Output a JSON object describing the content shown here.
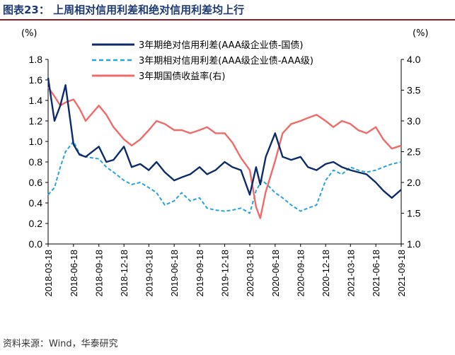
{
  "header": {
    "title": "图表23：  上周相对信用利差和绝对信用利差均上行"
  },
  "footer": {
    "source": "资料来源：Wind，华泰研究"
  },
  "colors": {
    "abs": "#0d2b6b",
    "rel": "#29a3dc",
    "yield": "#f06a6a",
    "title": "#1f3b73",
    "rule": "#8a1f24"
  },
  "chart_data": {
    "type": "line",
    "left_unit": "(%)",
    "right_unit": "(%)",
    "left_axis": {
      "ylim": [
        0.0,
        1.8
      ],
      "ticks": [
        "0.0",
        "0.2",
        "0.4",
        "0.6",
        "0.8",
        "1.0",
        "1.2",
        "1.4",
        "1.6",
        "1.8"
      ]
    },
    "right_axis": {
      "ylim": [
        1.0,
        4.0
      ],
      "ticks": [
        "1.0",
        "1.5",
        "2.0",
        "2.5",
        "3.0",
        "3.5",
        "4.0"
      ]
    },
    "x_ticks": [
      "2018-03-18",
      "2018-06-18",
      "2018-09-18",
      "2018-12-18",
      "2019-03-18",
      "2019-06-18",
      "2019-09-18",
      "2019-12-18",
      "2020-03-18",
      "2020-06-18",
      "2020-09-18",
      "2020-12-18",
      "2021-03-18",
      "2021-06-18",
      "2021-09-18"
    ],
    "legend_position": "top",
    "series": [
      {
        "name": "3年期绝对信用利差(AAA级企业债-国债)",
        "axis": "left",
        "style": "solid",
        "x": [
          "2018-03-18",
          "2018-04-10",
          "2018-05-01",
          "2018-05-20",
          "2018-06-18",
          "2018-07-10",
          "2018-08-01",
          "2018-09-18",
          "2018-10-15",
          "2018-11-10",
          "2018-12-18",
          "2019-01-15",
          "2019-02-15",
          "2019-03-18",
          "2019-04-15",
          "2019-05-15",
          "2019-06-18",
          "2019-07-15",
          "2019-08-15",
          "2019-09-18",
          "2019-10-15",
          "2019-11-15",
          "2019-12-18",
          "2020-01-15",
          "2020-02-15",
          "2020-03-18",
          "2020-04-10",
          "2020-04-25",
          "2020-05-15",
          "2020-06-18",
          "2020-07-15",
          "2020-08-15",
          "2020-09-18",
          "2020-10-15",
          "2020-11-15",
          "2020-12-18",
          "2021-01-15",
          "2021-02-15",
          "2021-03-18",
          "2021-04-15",
          "2021-05-15",
          "2021-06-18",
          "2021-07-15",
          "2021-08-15",
          "2021-09-18"
        ],
        "y": [
          1.62,
          1.2,
          1.35,
          1.55,
          0.97,
          0.87,
          0.85,
          0.95,
          0.8,
          0.82,
          0.95,
          0.75,
          0.78,
          0.72,
          0.8,
          0.7,
          0.62,
          0.65,
          0.68,
          0.75,
          0.68,
          0.72,
          0.8,
          0.75,
          0.72,
          0.48,
          0.75,
          0.58,
          0.85,
          1.08,
          0.85,
          0.82,
          0.85,
          0.75,
          0.72,
          0.78,
          0.8,
          0.75,
          0.72,
          0.7,
          0.68,
          0.6,
          0.52,
          0.45,
          0.53
        ]
      },
      {
        "name": "3年期相对信用利差(AAA级企业债-AAA级)",
        "axis": "left",
        "style": "dashed",
        "x": [
          "2018-03-18",
          "2018-04-10",
          "2018-05-01",
          "2018-05-20",
          "2018-06-18",
          "2018-07-10",
          "2018-08-01",
          "2018-09-18",
          "2018-10-15",
          "2018-11-10",
          "2018-12-18",
          "2019-01-15",
          "2019-02-15",
          "2019-03-18",
          "2019-04-15",
          "2019-05-15",
          "2019-06-18",
          "2019-07-15",
          "2019-08-15",
          "2019-09-18",
          "2019-10-15",
          "2019-11-15",
          "2019-12-18",
          "2020-01-15",
          "2020-02-15",
          "2020-03-18",
          "2020-04-10",
          "2020-05-01",
          "2020-05-20",
          "2020-06-18",
          "2020-07-15",
          "2020-08-15",
          "2020-09-18",
          "2020-10-15",
          "2020-11-15",
          "2020-12-18",
          "2021-01-15",
          "2021-02-15",
          "2021-03-18",
          "2021-04-15",
          "2021-05-15",
          "2021-06-18",
          "2021-07-15",
          "2021-08-15",
          "2021-09-18"
        ],
        "y": [
          0.48,
          0.55,
          0.75,
          0.9,
          1.0,
          0.88,
          0.85,
          0.83,
          0.75,
          0.7,
          0.62,
          0.58,
          0.6,
          0.55,
          0.5,
          0.38,
          0.42,
          0.5,
          0.42,
          0.45,
          0.35,
          0.33,
          0.32,
          0.33,
          0.35,
          0.3,
          0.52,
          0.62,
          0.58,
          0.5,
          0.45,
          0.38,
          0.32,
          0.35,
          0.38,
          0.62,
          0.72,
          0.68,
          0.75,
          0.72,
          0.7,
          0.72,
          0.75,
          0.78,
          0.8
        ]
      },
      {
        "name": "3年期国债收益率(右)",
        "axis": "right",
        "style": "solid",
        "x": [
          "2018-03-18",
          "2018-04-10",
          "2018-05-01",
          "2018-05-20",
          "2018-06-18",
          "2018-07-10",
          "2018-08-01",
          "2018-09-18",
          "2018-10-15",
          "2018-11-10",
          "2018-12-18",
          "2019-01-15",
          "2019-02-15",
          "2019-03-18",
          "2019-04-15",
          "2019-05-15",
          "2019-06-18",
          "2019-07-15",
          "2019-08-15",
          "2019-09-18",
          "2019-10-15",
          "2019-11-15",
          "2019-12-18",
          "2020-01-15",
          "2020-02-15",
          "2020-03-18",
          "2020-04-10",
          "2020-04-25",
          "2020-05-15",
          "2020-06-18",
          "2020-07-15",
          "2020-08-15",
          "2020-09-18",
          "2020-10-15",
          "2020-11-15",
          "2020-12-18",
          "2021-01-15",
          "2021-02-15",
          "2021-03-18",
          "2021-04-15",
          "2021-05-15",
          "2021-06-18",
          "2021-07-15",
          "2021-08-15",
          "2021-09-18"
        ],
        "y": [
          3.55,
          3.4,
          3.25,
          3.3,
          3.35,
          3.2,
          3.0,
          3.25,
          3.1,
          2.9,
          2.7,
          2.6,
          2.7,
          2.85,
          3.0,
          2.95,
          2.85,
          2.85,
          2.8,
          2.85,
          2.9,
          2.8,
          2.8,
          2.65,
          2.4,
          2.2,
          1.6,
          1.42,
          1.85,
          2.35,
          2.8,
          2.95,
          3.0,
          3.05,
          3.1,
          3.0,
          2.9,
          3.0,
          2.95,
          2.85,
          2.8,
          2.9,
          2.7,
          2.55,
          2.6
        ]
      }
    ]
  }
}
